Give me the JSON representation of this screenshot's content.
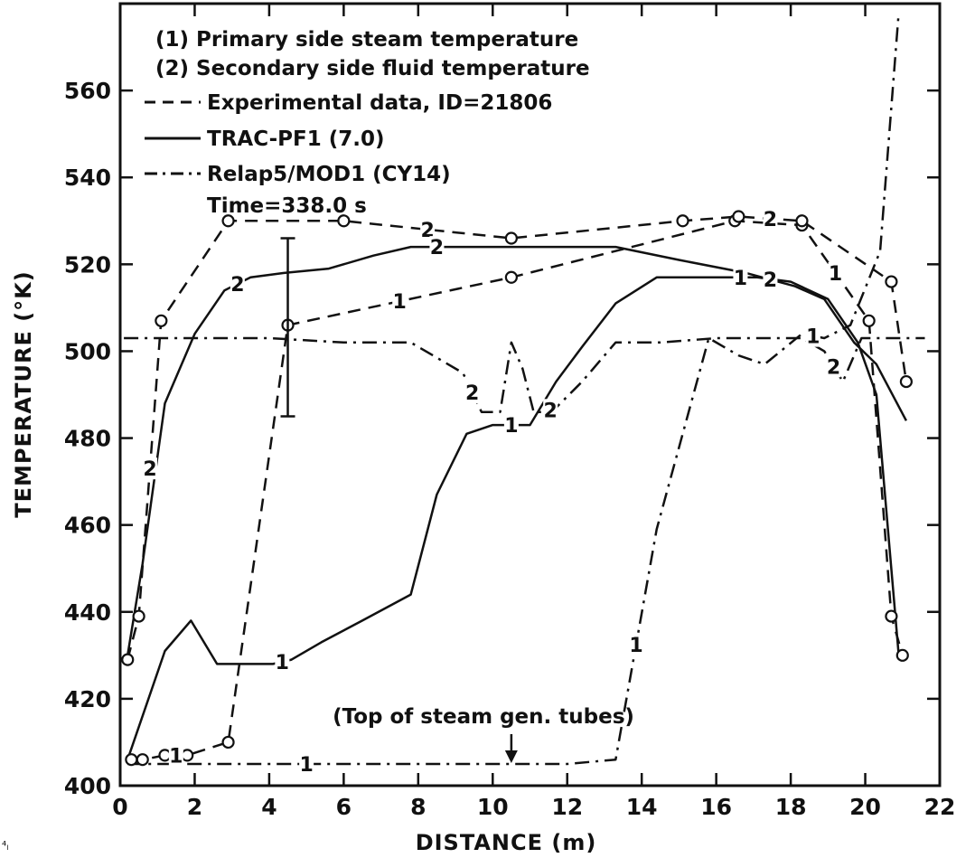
{
  "chart_data": {
    "type": "line",
    "title": "",
    "xlabel": "DISTANCE (m)",
    "ylabel": "TEMPERATURE (°K)",
    "xlim": [
      0,
      22
    ],
    "ylim": [
      400,
      580
    ],
    "x_ticks": [
      0,
      2,
      4,
      6,
      8,
      10,
      12,
      14,
      16,
      18,
      20,
      22
    ],
    "y_ticks": [
      400,
      420,
      440,
      460,
      480,
      500,
      520,
      540,
      560
    ],
    "grid": false,
    "legend_placement": "top-left",
    "legend": {
      "line1": "(1) Primary side steam temperature",
      "line2": "(2) Secondary side fluid temperature",
      "line3": "Experimental data, ID=21806",
      "line4": "TRAC-PF1 (7.0)",
      "line5": "Relap5/MOD1 (CY14)",
      "line6": "Time=338.0 s"
    },
    "annotation": "(Top of steam gen. tubes)",
    "annotation_x": 10.5,
    "error_bar": {
      "x": 4.5,
      "low": 485,
      "high": 526
    },
    "series": [
      {
        "name": "Experimental data, ID=21806",
        "variable": "1",
        "style": "dashed",
        "markers": true,
        "x": [
          0.3,
          0.6,
          1.2,
          1.8,
          2.9,
          4.5,
          10.5,
          16.5,
          18.3,
          20.1,
          20.7,
          21.0
        ],
        "y": [
          406,
          406,
          407,
          407,
          410,
          506,
          517,
          530,
          529,
          507,
          439,
          430
        ]
      },
      {
        "name": "Experimental data, ID=21806",
        "variable": "2",
        "style": "dashed",
        "markers": true,
        "x": [
          0.2,
          0.5,
          1.1,
          2.9,
          6.0,
          10.5,
          15.1,
          16.6,
          18.3,
          20.7,
          21.1
        ],
        "y": [
          429,
          439,
          507,
          530,
          530,
          526,
          530,
          531,
          530,
          516,
          493
        ]
      },
      {
        "name": "TRAC-PF1 (7.0)",
        "variable": "1",
        "style": "solid",
        "x": [
          0.2,
          1.2,
          1.9,
          2.6,
          3.3,
          4.1,
          4.6,
          5.4,
          6.5,
          7.8,
          8.5,
          9.3,
          10.0,
          11.0,
          11.7,
          12.4,
          13.3,
          14.4,
          15.4,
          16.2,
          17.1,
          18.0,
          19.0,
          19.8,
          20.3,
          20.9
        ],
        "y": [
          406,
          431,
          438,
          428,
          428,
          428,
          429,
          433,
          438,
          444,
          467,
          481,
          483,
          483,
          493,
          501,
          511,
          517,
          517,
          517,
          517,
          516,
          512,
          502,
          490,
          430
        ]
      },
      {
        "name": "TRAC-PF1 (7.0)",
        "variable": "2",
        "style": "solid",
        "x": [
          0.2,
          0.6,
          1.2,
          2.0,
          2.8,
          3.5,
          4.4,
          5.6,
          6.8,
          7.8,
          9.2,
          10.6,
          12.3,
          13.3,
          15.0,
          16.8,
          18.1,
          18.9,
          19.7,
          20.3,
          21.1
        ],
        "y": [
          430,
          451,
          488,
          504,
          514,
          517,
          518,
          519,
          522,
          524,
          524,
          524,
          524,
          524,
          521,
          518,
          515,
          512,
          502,
          497,
          484
        ]
      },
      {
        "name": "Relap5/MOD1 (CY14)",
        "variable": "1",
        "style": "dashdot",
        "x": [
          0.2,
          1.0,
          2.0,
          4.0,
          6.0,
          8.0,
          10.0,
          12.0,
          13.3,
          14.4,
          15.8,
          16.6,
          17.3,
          18.3,
          18.9,
          19.6,
          20.4,
          20.9
        ],
        "y": [
          405,
          405,
          405,
          405,
          405,
          405,
          405,
          405,
          406,
          459,
          503,
          499,
          497,
          504,
          503,
          506,
          523,
          578
        ]
      },
      {
        "name": "Relap5/MOD1 (CY14)",
        "variable": "2",
        "style": "dashdot",
        "x": [
          0.1,
          2.0,
          4.0,
          6.0,
          7.8,
          9.2,
          9.7,
          10.2,
          10.5,
          10.8,
          11.1,
          11.4,
          11.7,
          12.4,
          13.3,
          14.5,
          16.0,
          17.5,
          18.3,
          18.9,
          19.4,
          19.9,
          20.3,
          20.8,
          21.6
        ],
        "y": [
          503,
          503,
          503,
          502,
          502,
          495,
          486,
          486,
          502,
          496,
          486,
          486,
          487,
          493,
          502,
          502,
          503,
          503,
          503,
          500,
          493,
          503,
          503,
          503,
          503
        ]
      }
    ]
  },
  "page": {
    "footnote_mark": "⁴ₗ"
  }
}
